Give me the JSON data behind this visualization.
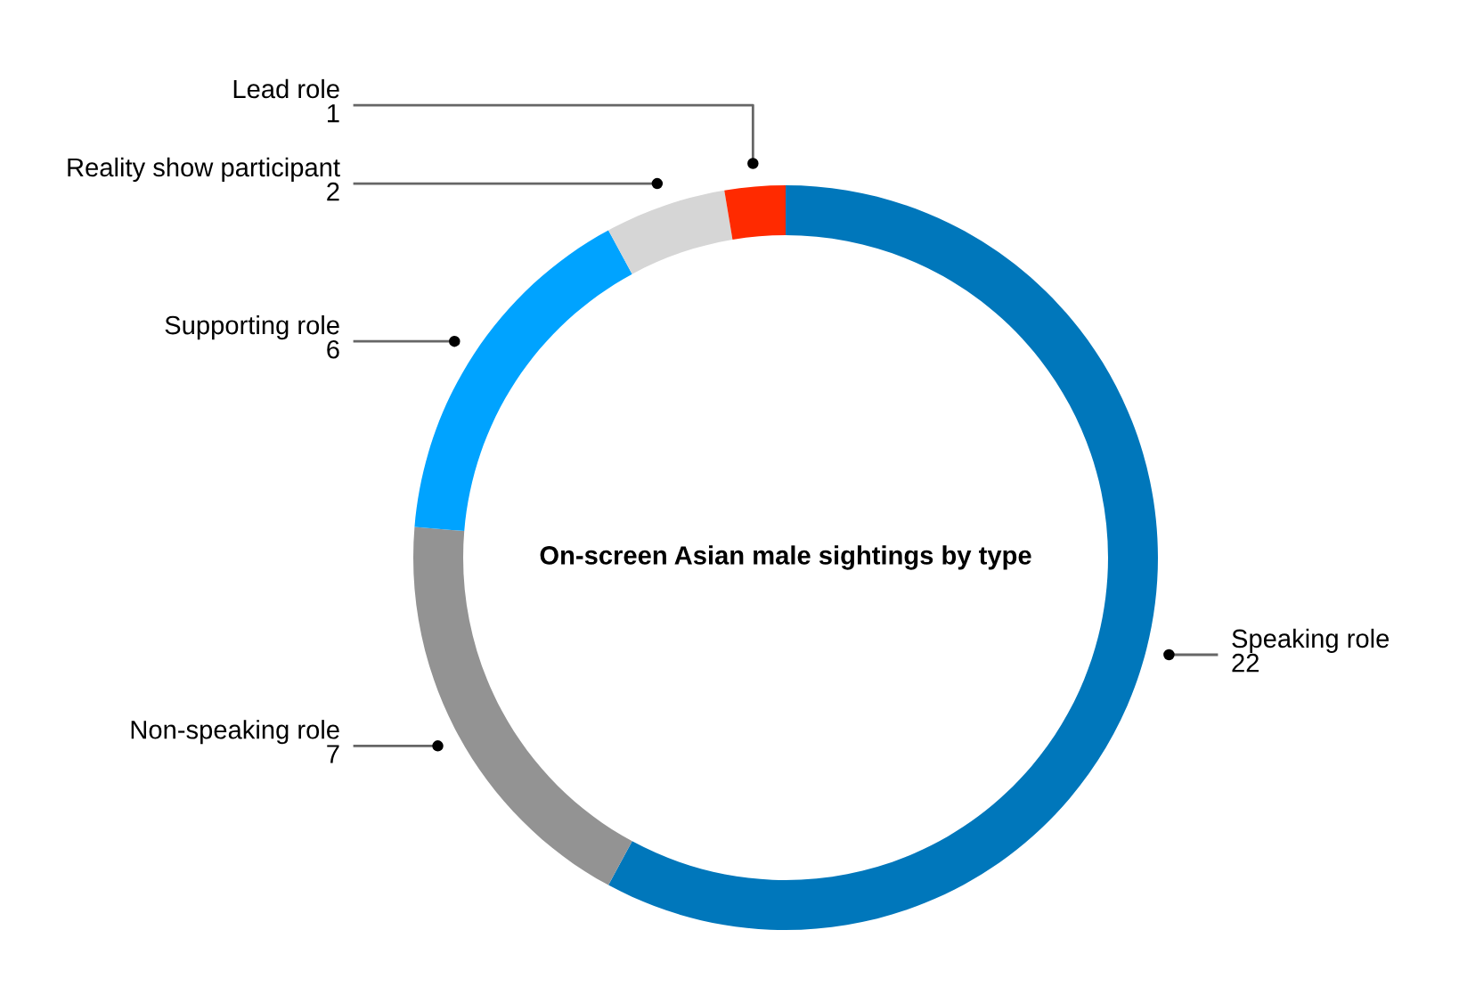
{
  "chart_data": {
    "type": "donut",
    "title": "On-screen Asian male sightings by type",
    "categories": [
      "Speaking role",
      "Non-speaking role",
      "Supporting role",
      "Reality show participant",
      "Lead role"
    ],
    "values": [
      22,
      7,
      6,
      2,
      1
    ],
    "colors": [
      "#0077bb",
      "#939393",
      "#00a3ff",
      "#d6d6d6",
      "#ff2a00"
    ],
    "data_labels": true
  }
}
